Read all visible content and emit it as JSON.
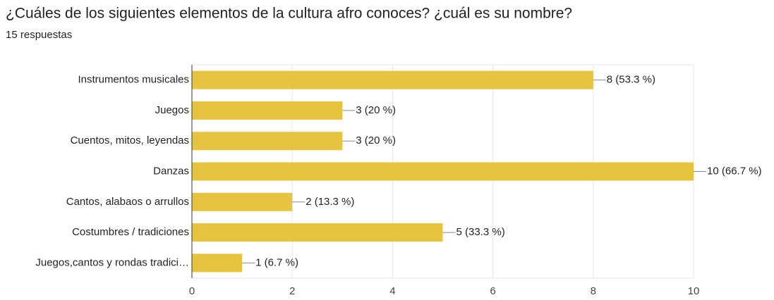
{
  "chart_data": {
    "type": "bar",
    "orientation": "horizontal",
    "title": "¿Cuáles de los siguientes elementos de la cultura afro conoces? ¿cuál es su nombre?",
    "subtitle": "15 respuestas",
    "categories": [
      "Instrumentos musicales",
      "Juegos",
      "Cuentos, mitos, leyendas",
      "Danzas",
      "Cantos, alabaos o arrullos",
      "Costumbres / tradiciones",
      "Juegos,cantos y rondas tradici…"
    ],
    "values": [
      8,
      3,
      3,
      10,
      2,
      5,
      1
    ],
    "value_labels": [
      "8 (53.3 %)",
      "3 (20 %)",
      "3 (20 %)",
      "10 (66.7 %)",
      "2 (13.3 %)",
      "5 (33.3 %)",
      "1 (6.7 %)"
    ],
    "color": "#e6c440",
    "xlim": [
      0,
      10
    ],
    "xticks": [
      0,
      2,
      4,
      6,
      8,
      10
    ],
    "grid": true
  }
}
